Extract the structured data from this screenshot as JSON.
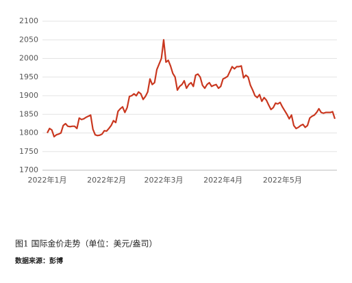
{
  "chart_data": {
    "type": "line",
    "categories": [
      "2022年1月",
      null,
      null,
      null,
      null,
      null,
      null,
      null,
      null,
      null,
      null,
      null,
      null,
      null,
      null,
      null,
      null,
      null,
      null,
      null,
      null,
      null,
      null,
      null,
      null,
      null,
      "2022年2月",
      null,
      null,
      null,
      null,
      null,
      null,
      null,
      null,
      null,
      null,
      null,
      null,
      null,
      null,
      null,
      null,
      null,
      null,
      null,
      null,
      null,
      null,
      null,
      null,
      "2022年3月",
      null,
      null,
      null,
      null,
      null,
      null,
      null,
      null,
      null,
      null,
      null,
      null,
      null,
      null,
      null,
      null,
      null,
      null,
      null,
      null,
      null,
      null,
      null,
      null,
      null,
      "2022年4月",
      null,
      null,
      null,
      null,
      null,
      null,
      null,
      null,
      null,
      null,
      null,
      null,
      null,
      null,
      null,
      null,
      null,
      null,
      null,
      null,
      null,
      null,
      null,
      null,
      null,
      "2022年5月",
      null,
      null,
      null,
      null,
      null,
      null,
      null,
      null,
      null,
      null,
      null,
      null,
      null,
      null,
      null,
      null,
      null,
      null,
      null,
      null,
      null,
      null,
      null
    ],
    "series": [
      {
        "color": "#c9371f",
        "values": [
          1800,
          1812,
          1808,
          1790,
          1795,
          1797,
          1800,
          1820,
          1825,
          1818,
          1817,
          1818,
          1818,
          1812,
          1840,
          1836,
          1838,
          1842,
          1845,
          1848,
          1810,
          1795,
          1793,
          1794,
          1797,
          1806,
          1805,
          1812,
          1820,
          1833,
          1828,
          1858,
          1865,
          1870,
          1855,
          1868,
          1898,
          1900,
          1905,
          1900,
          1910,
          1905,
          1890,
          1898,
          1910,
          1945,
          1930,
          1935,
          1970,
          1985,
          2000,
          2050,
          1990,
          1995,
          1980,
          1960,
          1950,
          1915,
          1925,
          1930,
          1940,
          1920,
          1930,
          1935,
          1925,
          1955,
          1958,
          1950,
          1928,
          1920,
          1930,
          1935,
          1925,
          1928,
          1930,
          1920,
          1925,
          1945,
          1948,
          1952,
          1965,
          1978,
          1972,
          1978,
          1978,
          1980,
          1948,
          1955,
          1950,
          1928,
          1915,
          1900,
          1895,
          1903,
          1885,
          1895,
          1888,
          1875,
          1863,
          1868,
          1880,
          1878,
          1882,
          1870,
          1860,
          1850,
          1838,
          1848,
          1820,
          1812,
          1815,
          1820,
          1823,
          1815,
          1820,
          1840,
          1845,
          1848,
          1855,
          1865,
          1855,
          1853,
          1855,
          1855,
          1855,
          1857,
          1838
        ]
      }
    ],
    "ylim": [
      1700,
      2100
    ],
    "yticks": [
      1700,
      1750,
      1800,
      1850,
      1900,
      1950,
      2000,
      2050,
      2100
    ],
    "grid": true
  },
  "caption": "图1 国际金价走势（单位：美元/盎司）",
  "source": "数据来源：彭博"
}
